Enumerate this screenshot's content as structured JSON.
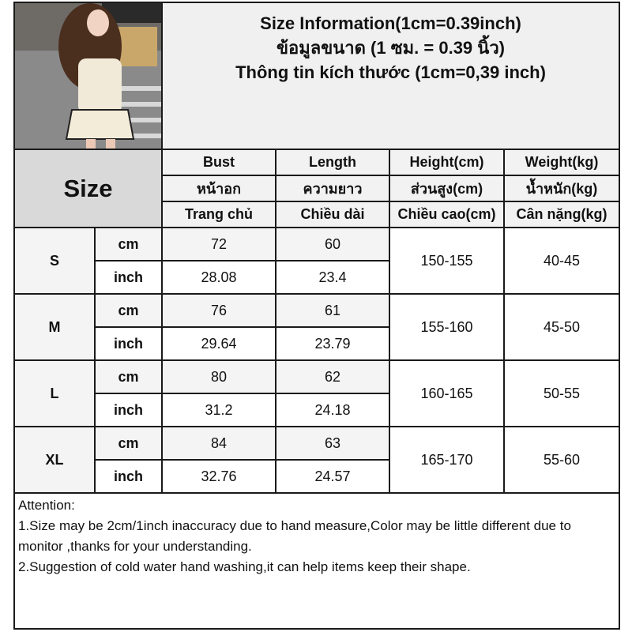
{
  "title": {
    "lines": [
      "Size Information(1cm=0.39inch)",
      "ข้อมูลขนาด (1 ซม. = 0.39 นิ้ว)",
      "Thông tin kích thước (1cm=0,39 inch)"
    ]
  },
  "size_label": "Size",
  "headers": [
    [
      "Bust",
      "Length",
      "Height(cm)",
      "Weight(kg)"
    ],
    [
      "หน้าอก",
      "ความยาว",
      "ส่วนสูง(cm)",
      "น้ำหนัก(kg)"
    ],
    [
      "Trang chủ",
      "Chiều dài",
      "Chiều cao(cm)",
      "Cân nặng(kg)"
    ]
  ],
  "rows": [
    {
      "size": "S",
      "cm": {
        "unit": "cm",
        "bust": "72",
        "length": "60"
      },
      "inch": {
        "unit": "inch",
        "bust": "28.08",
        "length": "23.4"
      },
      "height": "150-155",
      "weight": "40-45"
    },
    {
      "size": "M",
      "cm": {
        "unit": "cm",
        "bust": "76",
        "length": "61"
      },
      "inch": {
        "unit": "inch",
        "bust": "29.64",
        "length": "23.79"
      },
      "height": "155-160",
      "weight": "45-50"
    },
    {
      "size": "L",
      "cm": {
        "unit": "cm",
        "bust": "80",
        "length": "62"
      },
      "inch": {
        "unit": "inch",
        "bust": "31.2",
        "length": "24.18"
      },
      "height": "160-165",
      "weight": "50-55"
    },
    {
      "size": "XL",
      "cm": {
        "unit": "cm",
        "bust": "84",
        "length": "63"
      },
      "inch": {
        "unit": "inch",
        "bust": "32.76",
        "length": "24.57"
      },
      "height": "165-170",
      "weight": "55-60"
    }
  ],
  "attention": {
    "heading": "Attention:",
    "items": [
      "1.Size may be 2cm/1inch inaccuracy due to hand measure,Color may be little different due to monitor ,thanks for your understanding.",
      "2.Suggestion of cold water hand washing,it can help items keep their shape."
    ]
  }
}
